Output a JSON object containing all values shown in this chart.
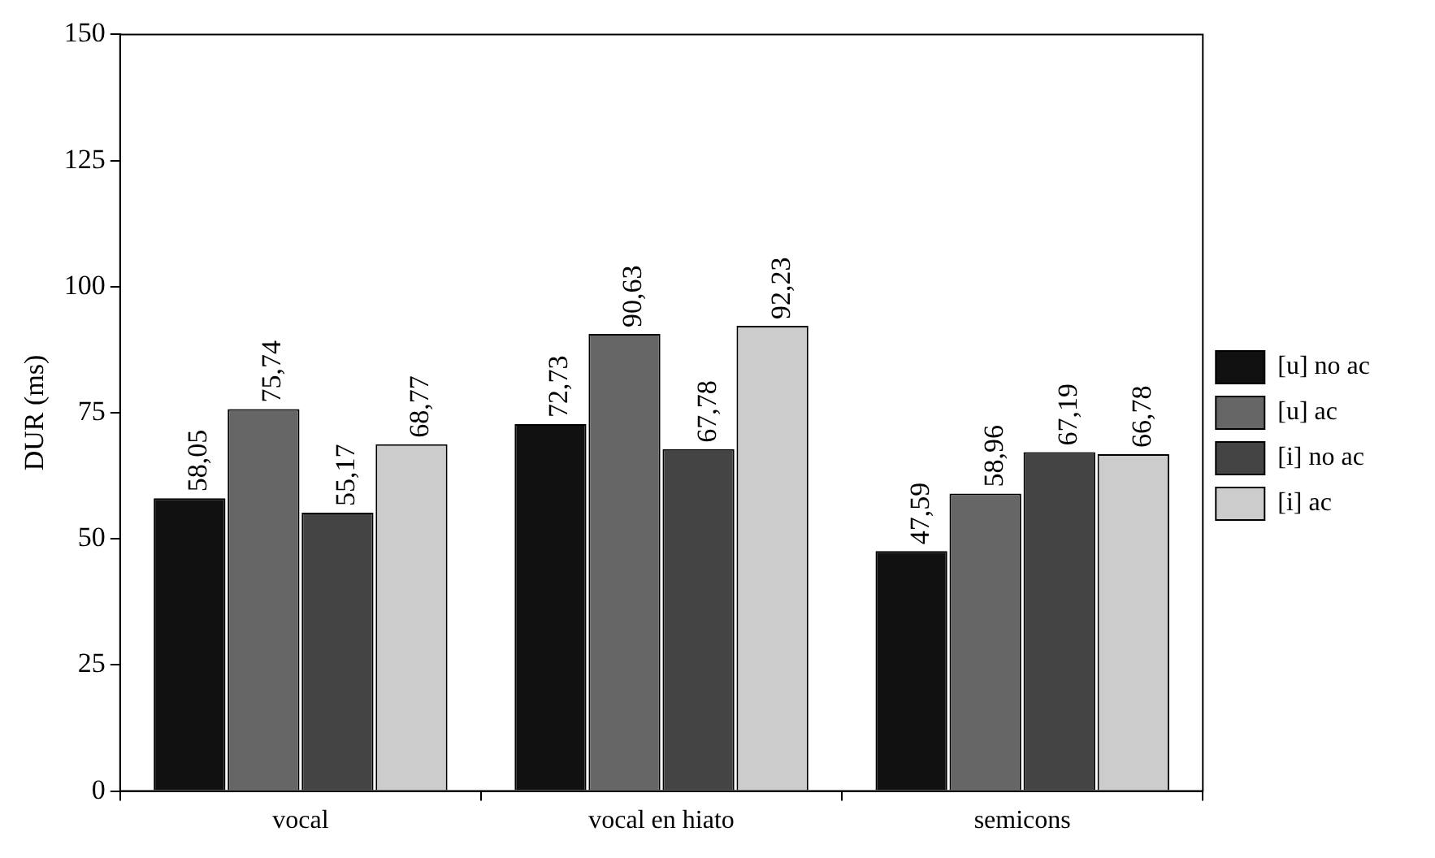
{
  "chart_data": {
    "type": "bar",
    "ylabel": "DUR (ms)",
    "categories": [
      "vocal",
      "vocal en hiato",
      "semicons"
    ],
    "series": [
      {
        "name": "[u] no ac",
        "color": "#111111",
        "values": [
          58.05,
          72.73,
          47.59
        ],
        "value_labels": [
          "58,05",
          "72,73",
          "47,59"
        ]
      },
      {
        "name": "[u] ac",
        "color": "#666666",
        "values": [
          75.74,
          90.63,
          58.96
        ],
        "value_labels": [
          "75,74",
          "90,63",
          "58,96"
        ]
      },
      {
        "name": "[i] no ac",
        "color": "#444444",
        "values": [
          55.17,
          67.78,
          67.19
        ],
        "value_labels": [
          "55,17",
          "67,78",
          "67,19"
        ]
      },
      {
        "name": "[i] ac",
        "color": "#cccccc",
        "values": [
          68.77,
          92.23,
          66.78
        ],
        "value_labels": [
          "68,77",
          "92,23",
          "66,78"
        ]
      }
    ],
    "ylim": [
      0,
      150
    ],
    "yticks": [
      0,
      25,
      50,
      75,
      100,
      125,
      150
    ],
    "grid": false,
    "legend": "right"
  }
}
